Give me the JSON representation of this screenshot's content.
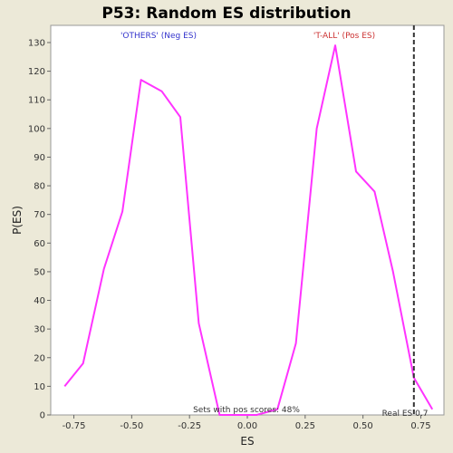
{
  "chart_data": {
    "type": "line",
    "title": "P53: Random ES distribution",
    "xlabel": "ES",
    "ylabel": "P(ES)",
    "xlim": [
      -0.85,
      0.85
    ],
    "ylim": [
      0,
      136
    ],
    "x_ticks": [
      -0.75,
      -0.5,
      -0.25,
      0.0,
      0.25,
      0.5,
      0.75
    ],
    "x_tick_labels": [
      "-0.75",
      "-0.50",
      "-0.25",
      "0.00",
      "0.25",
      "0.50",
      "0.75"
    ],
    "y_ticks": [
      0,
      10,
      20,
      30,
      40,
      50,
      60,
      70,
      80,
      90,
      100,
      110,
      120,
      130
    ],
    "y_tick_labels": [
      "0",
      "10",
      "20",
      "30",
      "40",
      "50",
      "60",
      "70",
      "80",
      "90",
      "100",
      "110",
      "120",
      "130"
    ],
    "grid": false,
    "series": [
      {
        "color": "#ff33ff",
        "x": [
          -0.79,
          -0.71,
          -0.62,
          -0.54,
          -0.46,
          -0.37,
          -0.29,
          -0.21,
          -0.12,
          -0.04,
          0.04,
          0.13,
          0.21,
          0.3,
          0.38,
          0.47,
          0.55,
          0.63,
          0.72,
          0.8
        ],
        "y": [
          10,
          18,
          51,
          71,
          117,
          113,
          104,
          32,
          0,
          0,
          0,
          2,
          25,
          100,
          129,
          85,
          78,
          50,
          13,
          2
        ]
      }
    ],
    "vertical_marker": {
      "x": 0.72,
      "style": "dashed",
      "color": "#333333"
    },
    "annotations": {
      "neg_label": "'OTHERS' (Neg ES)",
      "neg_color": "#3333cc",
      "pos_label": "'T-ALL' (Pos ES)",
      "pos_color": "#cc3333",
      "bottom_note": "Sets with pos scores: 48%",
      "marker_label": "Real ES 0.7"
    }
  }
}
